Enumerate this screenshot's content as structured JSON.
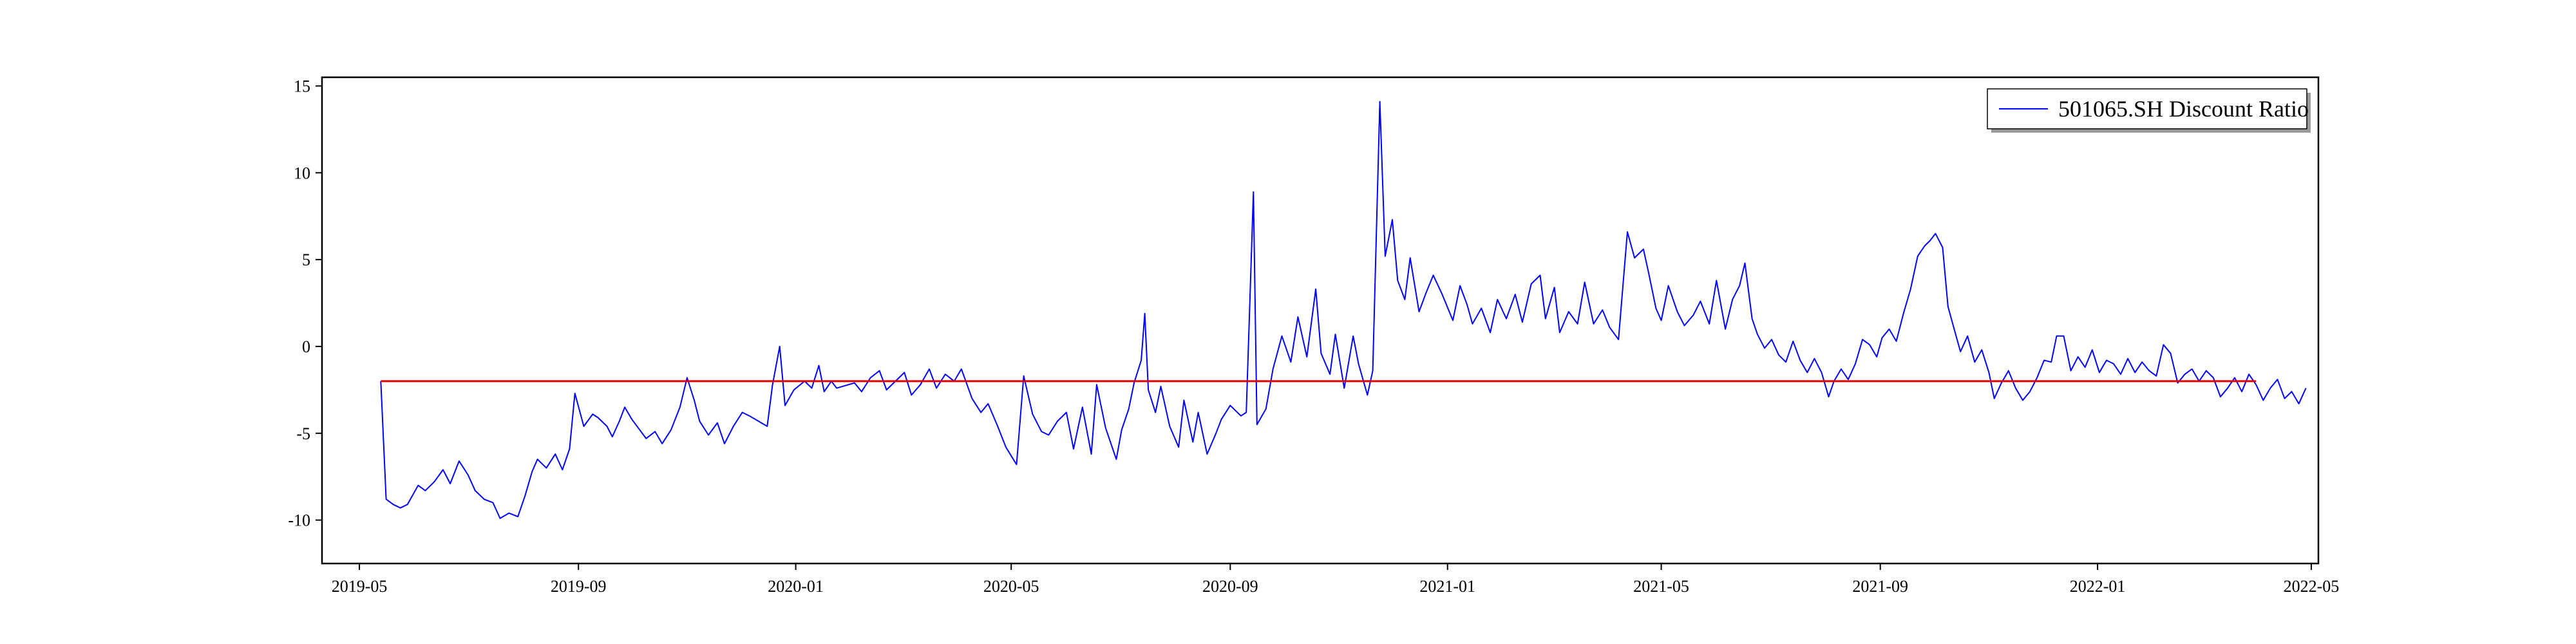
{
  "chart_data": {
    "type": "line",
    "title": "",
    "xlabel": "",
    "ylabel": "",
    "legend": {
      "position": "top-right",
      "entries": [
        "501065.SH Discount Ratio"
      ]
    },
    "grid": false,
    "x_ticks": [
      "2019-05",
      "2019-09",
      "2020-01",
      "2020-05",
      "2020-09",
      "2021-01",
      "2021-05",
      "2021-09",
      "2022-01",
      "2022-05"
    ],
    "y_ticks": [
      -10,
      -5,
      0,
      5,
      10,
      15
    ],
    "xlim": [
      "2019-04-10",
      "2022-05-05"
    ],
    "ylim": [
      -12.5,
      15.5
    ],
    "series": [
      {
        "name": "501065.SH Discount Ratio",
        "color": "#0000ff",
        "points": [
          [
            "2019-05-13",
            -2.0
          ],
          [
            "2019-05-16",
            -8.8
          ],
          [
            "2019-05-20",
            -9.1
          ],
          [
            "2019-05-24",
            -9.3
          ],
          [
            "2019-05-28",
            -9.1
          ],
          [
            "2019-06-03",
            -8.0
          ],
          [
            "2019-06-07",
            -8.3
          ],
          [
            "2019-06-12",
            -7.8
          ],
          [
            "2019-06-17",
            -7.1
          ],
          [
            "2019-06-21",
            -7.9
          ],
          [
            "2019-06-26",
            -6.6
          ],
          [
            "2019-07-01",
            -7.4
          ],
          [
            "2019-07-05",
            -8.3
          ],
          [
            "2019-07-10",
            -8.8
          ],
          [
            "2019-07-15",
            -9.0
          ],
          [
            "2019-07-19",
            -9.9
          ],
          [
            "2019-07-24",
            -9.6
          ],
          [
            "2019-07-29",
            -9.8
          ],
          [
            "2019-08-02",
            -8.6
          ],
          [
            "2019-08-06",
            -7.2
          ],
          [
            "2019-08-09",
            -6.5
          ],
          [
            "2019-08-14",
            -7.0
          ],
          [
            "2019-08-19",
            -6.2
          ],
          [
            "2019-08-23",
            -7.1
          ],
          [
            "2019-08-27",
            -5.9
          ],
          [
            "2019-08-30",
            -2.7
          ],
          [
            "2019-09-04",
            -4.6
          ],
          [
            "2019-09-09",
            -3.9
          ],
          [
            "2019-09-12",
            -4.1
          ],
          [
            "2019-09-17",
            -4.6
          ],
          [
            "2019-09-20",
            -5.2
          ],
          [
            "2019-09-24",
            -4.3
          ],
          [
            "2019-09-27",
            -3.5
          ],
          [
            "2019-10-01",
            -4.2
          ],
          [
            "2019-10-09",
            -5.3
          ],
          [
            "2019-10-14",
            -4.9
          ],
          [
            "2019-10-18",
            -5.6
          ],
          [
            "2019-10-23",
            -4.8
          ],
          [
            "2019-10-28",
            -3.5
          ],
          [
            "2019-11-01",
            -1.8
          ],
          [
            "2019-11-05",
            -3.1
          ],
          [
            "2019-11-08",
            -4.3
          ],
          [
            "2019-11-13",
            -5.1
          ],
          [
            "2019-11-18",
            -4.4
          ],
          [
            "2019-11-22",
            -5.6
          ],
          [
            "2019-11-27",
            -4.6
          ],
          [
            "2019-12-02",
            -3.8
          ],
          [
            "2019-12-06",
            -4.0
          ],
          [
            "2019-12-11",
            -4.3
          ],
          [
            "2019-12-16",
            -4.6
          ],
          [
            "2019-12-19",
            -2.2
          ],
          [
            "2019-12-23",
            0.0
          ],
          [
            "2019-12-26",
            -3.4
          ],
          [
            "2019-12-31",
            -2.5
          ],
          [
            "2020-01-06",
            -2.0
          ],
          [
            "2020-01-10",
            -2.4
          ],
          [
            "2020-01-14",
            -1.1
          ],
          [
            "2020-01-17",
            -2.6
          ],
          [
            "2020-01-21",
            -2.0
          ],
          [
            "2020-01-24",
            -2.4
          ],
          [
            "2020-02-03",
            -2.1
          ],
          [
            "2020-02-07",
            -2.6
          ],
          [
            "2020-02-12",
            -1.8
          ],
          [
            "2020-02-17",
            -1.4
          ],
          [
            "2020-02-21",
            -2.5
          ],
          [
            "2020-02-26",
            -2.0
          ],
          [
            "2020-03-02",
            -1.5
          ],
          [
            "2020-03-06",
            -2.8
          ],
          [
            "2020-03-11",
            -2.2
          ],
          [
            "2020-03-16",
            -1.3
          ],
          [
            "2020-03-20",
            -2.4
          ],
          [
            "2020-03-25",
            -1.6
          ],
          [
            "2020-03-30",
            -2.0
          ],
          [
            "2020-04-03",
            -1.3
          ],
          [
            "2020-04-09",
            -3.0
          ],
          [
            "2020-04-14",
            -3.8
          ],
          [
            "2020-04-18",
            -3.3
          ],
          [
            "2020-04-23",
            -4.5
          ],
          [
            "2020-04-28",
            -5.8
          ],
          [
            "2020-05-04",
            -6.8
          ],
          [
            "2020-05-08",
            -1.7
          ],
          [
            "2020-05-13",
            -3.9
          ],
          [
            "2020-05-18",
            -4.9
          ],
          [
            "2020-05-22",
            -5.1
          ],
          [
            "2020-05-27",
            -4.3
          ],
          [
            "2020-06-01",
            -3.8
          ],
          [
            "2020-06-05",
            -5.9
          ],
          [
            "2020-06-10",
            -3.5
          ],
          [
            "2020-06-15",
            -6.2
          ],
          [
            "2020-06-18",
            -2.2
          ],
          [
            "2020-06-23",
            -4.7
          ],
          [
            "2020-06-29",
            -6.5
          ],
          [
            "2020-07-02",
            -4.8
          ],
          [
            "2020-07-06",
            -3.6
          ],
          [
            "2020-07-09",
            -2.1
          ],
          [
            "2020-07-13",
            -0.8
          ],
          [
            "2020-07-15",
            1.9
          ],
          [
            "2020-07-17",
            -2.5
          ],
          [
            "2020-07-21",
            -3.8
          ],
          [
            "2020-07-24",
            -2.3
          ],
          [
            "2020-07-29",
            -4.6
          ],
          [
            "2020-08-03",
            -5.8
          ],
          [
            "2020-08-06",
            -3.1
          ],
          [
            "2020-08-11",
            -5.5
          ],
          [
            "2020-08-14",
            -3.8
          ],
          [
            "2020-08-19",
            -6.2
          ],
          [
            "2020-08-24",
            -5.0
          ],
          [
            "2020-08-27",
            -4.2
          ],
          [
            "2020-09-01",
            -3.4
          ],
          [
            "2020-09-07",
            -4.0
          ],
          [
            "2020-09-10",
            -3.8
          ],
          [
            "2020-09-14",
            8.9
          ],
          [
            "2020-09-16",
            -4.5
          ],
          [
            "2020-09-21",
            -3.6
          ],
          [
            "2020-09-25",
            -1.3
          ],
          [
            "2020-09-30",
            0.6
          ],
          [
            "2020-10-05",
            -0.9
          ],
          [
            "2020-10-09",
            1.7
          ],
          [
            "2020-10-14",
            -0.6
          ],
          [
            "2020-10-19",
            3.3
          ],
          [
            "2020-10-22",
            -0.4
          ],
          [
            "2020-10-27",
            -1.6
          ],
          [
            "2020-10-30",
            0.7
          ],
          [
            "2020-11-04",
            -2.4
          ],
          [
            "2020-11-09",
            0.6
          ],
          [
            "2020-11-12",
            -1.0
          ],
          [
            "2020-11-17",
            -2.8
          ],
          [
            "2020-11-20",
            -1.4
          ],
          [
            "2020-11-24",
            14.1
          ],
          [
            "2020-11-27",
            5.2
          ],
          [
            "2020-12-01",
            7.3
          ],
          [
            "2020-12-04",
            3.8
          ],
          [
            "2020-12-08",
            2.7
          ],
          [
            "2020-12-11",
            5.1
          ],
          [
            "2020-12-16",
            2.0
          ],
          [
            "2020-12-20",
            3.1
          ],
          [
            "2020-12-24",
            4.1
          ],
          [
            "2020-12-29",
            3.0
          ],
          [
            "2021-01-04",
            1.5
          ],
          [
            "2021-01-08",
            3.5
          ],
          [
            "2021-01-12",
            2.4
          ],
          [
            "2021-01-15",
            1.3
          ],
          [
            "2021-01-20",
            2.2
          ],
          [
            "2021-01-25",
            0.8
          ],
          [
            "2021-01-29",
            2.7
          ],
          [
            "2021-02-03",
            1.6
          ],
          [
            "2021-02-08",
            3.0
          ],
          [
            "2021-02-12",
            1.4
          ],
          [
            "2021-02-17",
            3.6
          ],
          [
            "2021-02-22",
            4.1
          ],
          [
            "2021-02-25",
            1.6
          ],
          [
            "2021-03-02",
            3.4
          ],
          [
            "2021-03-05",
            0.8
          ],
          [
            "2021-03-10",
            2.0
          ],
          [
            "2021-03-15",
            1.3
          ],
          [
            "2021-03-19",
            3.7
          ],
          [
            "2021-03-24",
            1.3
          ],
          [
            "2021-03-29",
            2.1
          ],
          [
            "2021-04-02",
            1.1
          ],
          [
            "2021-04-07",
            0.4
          ],
          [
            "2021-04-12",
            6.6
          ],
          [
            "2021-04-16",
            5.1
          ],
          [
            "2021-04-21",
            5.6
          ],
          [
            "2021-04-24",
            4.2
          ],
          [
            "2021-04-28",
            2.2
          ],
          [
            "2021-05-01",
            1.5
          ],
          [
            "2021-05-05",
            3.5
          ],
          [
            "2021-05-10",
            2.0
          ],
          [
            "2021-05-14",
            1.2
          ],
          [
            "2021-05-19",
            1.8
          ],
          [
            "2021-05-23",
            2.6
          ],
          [
            "2021-05-28",
            1.3
          ],
          [
            "2021-06-01",
            3.8
          ],
          [
            "2021-06-06",
            1.0
          ],
          [
            "2021-06-10",
            2.7
          ],
          [
            "2021-06-14",
            3.5
          ],
          [
            "2021-06-17",
            4.8
          ],
          [
            "2021-06-21",
            1.6
          ],
          [
            "2021-06-24",
            0.7
          ],
          [
            "2021-06-28",
            -0.1
          ],
          [
            "2021-07-02",
            0.4
          ],
          [
            "2021-07-06",
            -0.5
          ],
          [
            "2021-07-10",
            -0.9
          ],
          [
            "2021-07-14",
            0.3
          ],
          [
            "2021-07-18",
            -0.8
          ],
          [
            "2021-07-22",
            -1.5
          ],
          [
            "2021-07-26",
            -0.7
          ],
          [
            "2021-07-30",
            -1.5
          ],
          [
            "2021-08-03",
            -2.9
          ],
          [
            "2021-08-06",
            -2.0
          ],
          [
            "2021-08-10",
            -1.3
          ],
          [
            "2021-08-14",
            -1.9
          ],
          [
            "2021-08-18",
            -1.0
          ],
          [
            "2021-08-22",
            0.4
          ],
          [
            "2021-08-26",
            0.1
          ],
          [
            "2021-08-30",
            -0.6
          ],
          [
            "2021-09-02",
            0.5
          ],
          [
            "2021-09-06",
            1.0
          ],
          [
            "2021-09-10",
            0.3
          ],
          [
            "2021-09-14",
            1.9
          ],
          [
            "2021-09-18",
            3.3
          ],
          [
            "2021-09-22",
            5.2
          ],
          [
            "2021-09-26",
            5.8
          ],
          [
            "2021-09-29",
            6.1
          ],
          [
            "2021-10-02",
            6.5
          ],
          [
            "2021-10-06",
            5.7
          ],
          [
            "2021-10-09",
            2.3
          ],
          [
            "2021-10-13",
            0.8
          ],
          [
            "2021-10-16",
            -0.3
          ],
          [
            "2021-10-20",
            0.6
          ],
          [
            "2021-10-24",
            -0.9
          ],
          [
            "2021-10-28",
            -0.2
          ],
          [
            "2021-11-01",
            -1.5
          ],
          [
            "2021-11-04",
            -3.0
          ],
          [
            "2021-11-08",
            -2.1
          ],
          [
            "2021-11-12",
            -1.4
          ],
          [
            "2021-11-16",
            -2.4
          ],
          [
            "2021-11-20",
            -3.1
          ],
          [
            "2021-11-24",
            -2.6
          ],
          [
            "2021-11-28",
            -1.8
          ],
          [
            "2021-12-02",
            -0.8
          ],
          [
            "2021-12-06",
            -0.9
          ],
          [
            "2021-12-09",
            0.6
          ],
          [
            "2021-12-13",
            0.6
          ],
          [
            "2021-12-17",
            -1.4
          ],
          [
            "2021-12-21",
            -0.6
          ],
          [
            "2021-12-25",
            -1.2
          ],
          [
            "2021-12-29",
            -0.2
          ],
          [
            "2022-01-02",
            -1.5
          ],
          [
            "2022-01-06",
            -0.8
          ],
          [
            "2022-01-10",
            -1.0
          ],
          [
            "2022-01-14",
            -1.6
          ],
          [
            "2022-01-18",
            -0.7
          ],
          [
            "2022-01-22",
            -1.5
          ],
          [
            "2022-01-26",
            -0.9
          ],
          [
            "2022-01-30",
            -1.4
          ],
          [
            "2022-02-03",
            -1.7
          ],
          [
            "2022-02-07",
            0.1
          ],
          [
            "2022-02-11",
            -0.4
          ],
          [
            "2022-02-15",
            -2.1
          ],
          [
            "2022-02-19",
            -1.6
          ],
          [
            "2022-02-23",
            -1.3
          ],
          [
            "2022-02-27",
            -2.0
          ],
          [
            "2022-03-03",
            -1.4
          ],
          [
            "2022-03-07",
            -1.8
          ],
          [
            "2022-03-11",
            -2.9
          ],
          [
            "2022-03-15",
            -2.4
          ],
          [
            "2022-03-19",
            -1.8
          ],
          [
            "2022-03-23",
            -2.6
          ],
          [
            "2022-03-27",
            -1.6
          ],
          [
            "2022-03-31",
            -2.2
          ],
          [
            "2022-04-04",
            -3.1
          ],
          [
            "2022-04-08",
            -2.4
          ],
          [
            "2022-04-12",
            -1.9
          ],
          [
            "2022-04-16",
            -3.0
          ],
          [
            "2022-04-20",
            -2.6
          ],
          [
            "2022-04-24",
            -3.3
          ],
          [
            "2022-04-28",
            -2.4
          ]
        ]
      },
      {
        "name": "",
        "color": "#dd0000",
        "points": [
          [
            "2019-05-13",
            -2.0
          ],
          [
            "2022-03-31",
            -2.0
          ]
        ]
      }
    ]
  }
}
